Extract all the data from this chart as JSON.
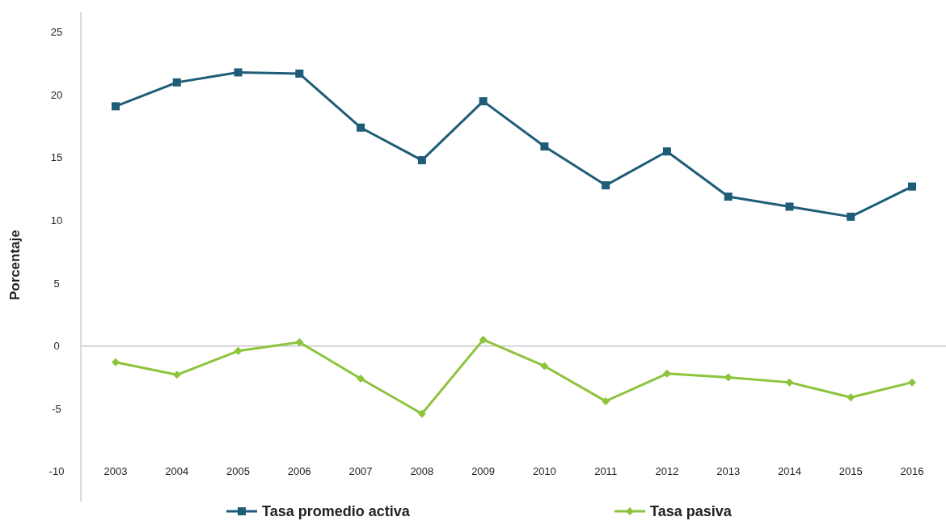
{
  "chart_data": {
    "type": "line",
    "ylabel": "Porcentaje",
    "categories": [
      "2003",
      "2004",
      "2005",
      "2006",
      "2007",
      "2008",
      "2009",
      "2010",
      "2011",
      "2012",
      "2013",
      "2014",
      "2015",
      "2016"
    ],
    "series": [
      {
        "name": "Tasa promedio activa",
        "color": "#1f5c78",
        "marker": "square",
        "values": [
          19.1,
          21.0,
          21.8,
          21.7,
          17.4,
          14.8,
          19.5,
          15.9,
          12.8,
          15.5,
          11.9,
          11.1,
          10.3,
          12.7
        ]
      },
      {
        "name": "Tasa pasiva",
        "color": "#8cc43c",
        "marker": "diamond",
        "values": [
          -1.3,
          -2.3,
          -0.4,
          0.3,
          -2.6,
          -5.4,
          0.5,
          -1.6,
          -4.4,
          -2.2,
          -2.5,
          -2.9,
          -4.1,
          -2.9
        ]
      }
    ],
    "ylim": [
      -12.4,
      26.6
    ],
    "yticks": [
      -10,
      -5,
      0,
      5,
      10,
      15,
      20,
      25
    ],
    "grid": false,
    "legend": "bottom",
    "line_style": "solid",
    "ref_lines": [
      {
        "axis": "y",
        "value": 0,
        "color": "#c8c8c8"
      }
    ]
  }
}
